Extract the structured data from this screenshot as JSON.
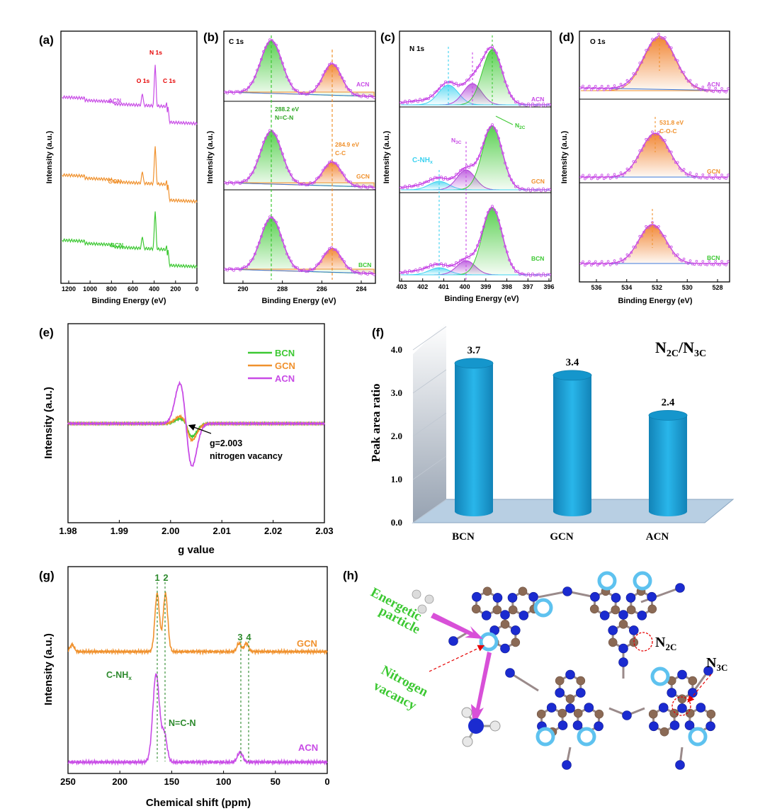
{
  "colors": {
    "bcn": "#3cc832",
    "gcn": "#f0912d",
    "acn": "#c84be6",
    "cyan": "#3cd2f0",
    "bar": "#1aa3d6",
    "red": "#e60000"
  },
  "panels": {
    "a": {
      "label": "(a)",
      "ylabel": "Intensity (a.u.)",
      "xlabel": "Binding Energy (eV)",
      "xticks": [
        "1200",
        "1000",
        "800",
        "600",
        "400",
        "200",
        "0"
      ],
      "peaks": [
        "N 1s",
        "O 1s",
        "C 1s"
      ],
      "series": [
        "ACN",
        "GCN",
        "BCN"
      ]
    },
    "b": {
      "label": "(b)",
      "title": "C 1s",
      "ylabel": "Intensity (a.u.)",
      "xlabel": "Binding Energy (eV)",
      "xticks": [
        "290",
        "288",
        "286",
        "284"
      ],
      "ann1_value": "288.2 eV",
      "ann1_name": "N=C-N",
      "ann2_value": "284.9 eV",
      "ann2_name": "C-C",
      "series": [
        "ACN",
        "GCN",
        "BCN"
      ]
    },
    "c": {
      "label": "(c)",
      "title": "N 1s",
      "ylabel": "Intensity (a.u.)",
      "xlabel": "Binding Energy (eV)",
      "xticks": [
        "403",
        "402",
        "401",
        "400",
        "399",
        "398",
        "397",
        "396"
      ],
      "n3c": "N",
      "n3c_sub": "3C",
      "n2c": "N",
      "n2c_sub": "2C",
      "cnh": "C-NH",
      "cnh_sub": "x",
      "series": [
        "ACN",
        "GCN",
        "BCN"
      ]
    },
    "d": {
      "label": "(d)",
      "title": "O 1s",
      "ylabel": "Intensity (a.u.)",
      "xlabel": "Binding Energy (eV)",
      "xticks": [
        "536",
        "534",
        "532",
        "530",
        "528"
      ],
      "ann_value": "531.8 eV",
      "ann_name": "C-O-C",
      "series": [
        "ACN",
        "GCN",
        "BCN"
      ]
    },
    "e": {
      "label": "(e)",
      "ylabel": "Intensity (a.u.)",
      "xlabel": "g value",
      "xticks": [
        "1.98",
        "1.99",
        "2.00",
        "2.01",
        "2.02",
        "2.03"
      ],
      "legend": [
        "BCN",
        "GCN",
        "ACN"
      ],
      "ann_g": "g=2.003",
      "ann_text": "nitrogen vacancy"
    },
    "f": {
      "label": "(f)",
      "ylabel": "Peak area ratio",
      "title_main": "N",
      "title_sub1": "2C",
      "title_slash": "/N",
      "title_sub2": "3C"
    },
    "g": {
      "label": "(g)",
      "ylabel": "Intensity (a.u.)",
      "xlabel": "Chemical shift (ppm)",
      "xticks": [
        "250",
        "200",
        "150",
        "100",
        "50",
        "0"
      ],
      "peak_nums": [
        "1",
        "2",
        "3",
        "4"
      ],
      "ann_cnh": "C-NH",
      "ann_cnh_sub": "x",
      "ann_ncn": "N=C-N",
      "series": [
        "GCN",
        "ACN"
      ]
    },
    "h": {
      "label": "(h)",
      "energetic": "Energetic",
      "particle": "particle",
      "nitrogen": "Nitrogen",
      "vacancy": "vacancy",
      "n2c": "N",
      "n2c_sub": "2C",
      "n3c": "N",
      "n3c_sub": "3C"
    }
  },
  "chart_data": [
    {
      "panel": "f",
      "type": "bar",
      "categories": [
        "BCN",
        "GCN",
        "ACN"
      ],
      "values": [
        3.7,
        3.4,
        2.4
      ],
      "value_labels": [
        "3.7",
        "3.4",
        "2.4"
      ],
      "ylabel": "Peak area ratio",
      "yticks": [
        "4.0",
        "3.0",
        "2.0",
        "1.0",
        "0.0"
      ],
      "ylim": [
        0,
        4
      ]
    },
    {
      "panel": "e",
      "type": "line",
      "xlim": [
        1.98,
        2.03
      ],
      "center": 2.003,
      "series": [
        {
          "name": "BCN",
          "amplitude_pos": 0.55,
          "amplitude_neg": 0.2
        },
        {
          "name": "GCN",
          "amplitude_pos": 0.7,
          "amplitude_neg": 0.3
        },
        {
          "name": "ACN",
          "amplitude_pos": 1.8,
          "amplitude_neg": 1.7
        }
      ]
    },
    {
      "panel": "b",
      "type": "line",
      "xlim": [
        291,
        283
      ],
      "peaks_eV": [
        288.2,
        284.9
      ]
    },
    {
      "panel": "d",
      "type": "line",
      "xlim": [
        537,
        527
      ],
      "peak_eV": 531.8
    }
  ]
}
